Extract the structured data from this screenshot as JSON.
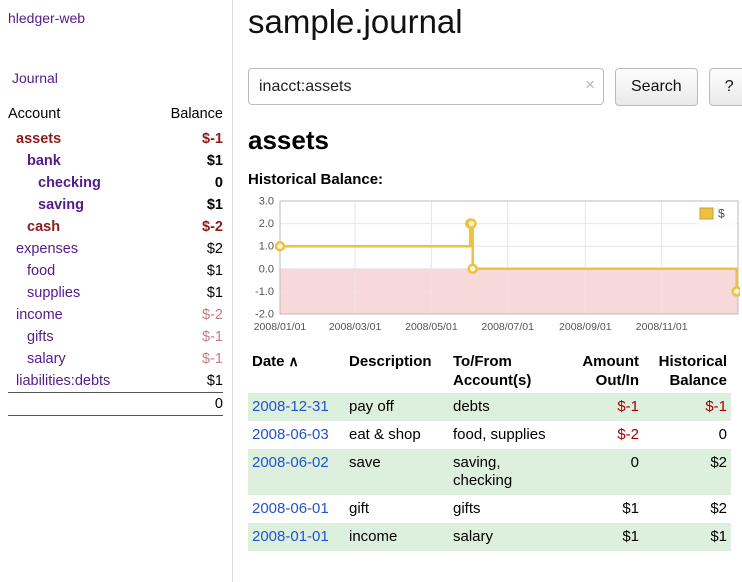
{
  "app": {
    "title": "hledger-web"
  },
  "sidebar": {
    "journal_link": "Journal",
    "table": {
      "headers": {
        "account": "Account",
        "balance": "Balance"
      },
      "rows": [
        {
          "name": "assets",
          "balance": "$-1",
          "indent": 8,
          "name_color": "maroon",
          "balance_color": "maroon",
          "emphasis": true
        },
        {
          "name": "bank",
          "balance": "$1",
          "indent": 19,
          "name_color": "purple",
          "balance_color": "normal",
          "emphasis": true
        },
        {
          "name": "checking",
          "balance": "0",
          "indent": 30,
          "name_color": "purple",
          "balance_color": "normal",
          "emphasis": true
        },
        {
          "name": "saving",
          "balance": "$1",
          "indent": 30,
          "name_color": "purple",
          "balance_color": "normal",
          "emphasis": true
        },
        {
          "name": "cash",
          "balance": "$-2",
          "indent": 19,
          "name_color": "maroon",
          "balance_color": "maroon",
          "emphasis": true
        },
        {
          "name": "expenses",
          "balance": "$2",
          "indent": 8,
          "name_color": "purple",
          "balance_color": "normal",
          "emphasis": false
        },
        {
          "name": "food",
          "balance": "$1",
          "indent": 19,
          "name_color": "purple",
          "balance_color": "normal",
          "emphasis": false
        },
        {
          "name": "supplies",
          "balance": "$1",
          "indent": 19,
          "name_color": "purple",
          "balance_color": "normal",
          "emphasis": false
        },
        {
          "name": "income",
          "balance": "$-2",
          "indent": 8,
          "name_color": "purple",
          "balance_color": "faded",
          "emphasis": false
        },
        {
          "name": "gifts",
          "balance": "$-1",
          "indent": 19,
          "name_color": "purple",
          "balance_color": "faded",
          "emphasis": false
        },
        {
          "name": "salary",
          "balance": "$-1",
          "indent": 19,
          "name_color": "purple",
          "balance_color": "faded",
          "emphasis": false
        },
        {
          "name": "liabilities:debts",
          "balance": "$1",
          "indent": 8,
          "name_color": "purple",
          "balance_color": "normal",
          "emphasis": false
        }
      ],
      "total": "0"
    }
  },
  "header": {
    "title": "sample.journal"
  },
  "search": {
    "value": "inacct:assets",
    "clear_icon": "×",
    "button": "Search",
    "help_button": "?"
  },
  "register": {
    "title": "assets",
    "chart_label": "Historical Balance:",
    "table": {
      "headers": [
        {
          "key": "date",
          "lines": [
            "Date"
          ],
          "align": "left",
          "sortable": true,
          "sort_icon": "∧"
        },
        {
          "key": "description",
          "lines": [
            "Description"
          ],
          "align": "left",
          "sortable": false
        },
        {
          "key": "accounts",
          "lines": [
            "To/From",
            "Account(s)"
          ],
          "align": "left",
          "sortable": false
        },
        {
          "key": "amount",
          "lines": [
            "Amount",
            "Out/In"
          ],
          "align": "right",
          "sortable": false
        },
        {
          "key": "balance",
          "lines": [
            "Historical",
            "Balance"
          ],
          "align": "right",
          "sortable": false
        }
      ],
      "rows": [
        {
          "date": "2008-12-31",
          "description": "pay off",
          "accounts": "debts",
          "amount": "$-1",
          "amount_negative": true,
          "balance": "$-1",
          "balance_negative": true,
          "shade": true
        },
        {
          "date": "2008-06-03",
          "description": "eat & shop",
          "accounts": "food, supplies",
          "amount": "$-2",
          "amount_negative": true,
          "balance": "0",
          "balance_negative": false,
          "shade": false
        },
        {
          "date": "2008-06-02",
          "description": "save",
          "accounts": "saving, checking",
          "amount": "0",
          "amount_negative": false,
          "balance": "$2",
          "balance_negative": false,
          "shade": true
        },
        {
          "date": "2008-06-01",
          "description": "gift",
          "accounts": "gifts",
          "amount": "$1",
          "amount_negative": false,
          "balance": "$2",
          "balance_negative": false,
          "shade": false
        },
        {
          "date": "2008-01-01",
          "description": "income",
          "accounts": "salary",
          "amount": "$1",
          "amount_negative": false,
          "balance": "$1",
          "balance_negative": false,
          "shade": true
        }
      ]
    }
  },
  "chart_data": {
    "type": "line",
    "title": "Historical Balance",
    "step": true,
    "line_color": "#edc240",
    "marker_fill": "#fdf3d2",
    "negative_region_color": "#f8d9d9",
    "legend": {
      "label": "$",
      "position": "top-right"
    },
    "points": [
      {
        "date": "2008-01-01",
        "value": 1
      },
      {
        "date": "2008-06-01",
        "value": 2
      },
      {
        "date": "2008-06-02",
        "value": 2
      },
      {
        "date": "2008-06-03",
        "value": 0
      },
      {
        "date": "2008-12-31",
        "value": -1
      }
    ],
    "x_range": [
      "2008-01-01",
      "2009-01-01"
    ],
    "y_range": [
      -2,
      3
    ],
    "x_ticks": [
      {
        "date": "2008-01-01",
        "label": "2008/01/01"
      },
      {
        "date": "2008-03-01",
        "label": "2008/03/01"
      },
      {
        "date": "2008-05-01",
        "label": "2008/05/01"
      },
      {
        "date": "2008-07-01",
        "label": "2008/07/01"
      },
      {
        "date": "2008-09-01",
        "label": "2008/09/01"
      },
      {
        "date": "2008-11-01",
        "label": "2008/11/01"
      }
    ],
    "y_ticks": [
      {
        "value": 3,
        "label": "3.0"
      },
      {
        "value": 2,
        "label": "2.0"
      },
      {
        "value": 1,
        "label": "1.0"
      },
      {
        "value": 0,
        "label": "0.0"
      },
      {
        "value": -1,
        "label": "-1.0"
      },
      {
        "value": -2,
        "label": "-2.0"
      }
    ]
  }
}
